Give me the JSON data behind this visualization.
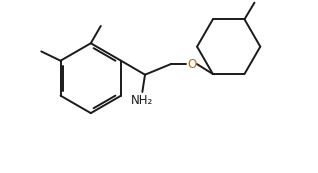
{
  "bg_color": "#ffffff",
  "line_color": "#1a1a1a",
  "text_color": "#1a1a1a",
  "o_color": "#cc6600",
  "line_width": 1.4,
  "font_size": 8.5
}
